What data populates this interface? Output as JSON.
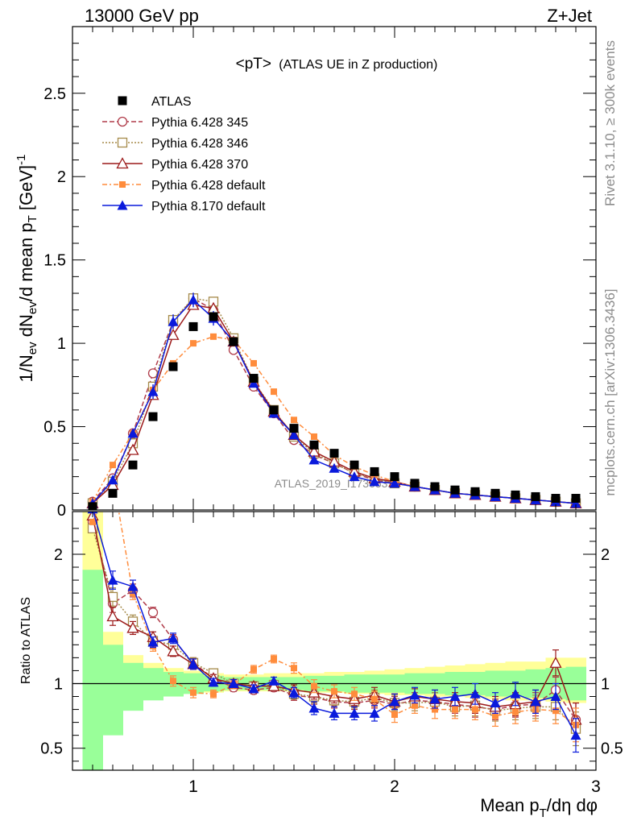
{
  "header": {
    "left": "13000 GeV pp",
    "right": "Z+Jet"
  },
  "side_labels": {
    "rivet": "Rivet 3.1.10, ≥ 300k events",
    "site": "mcplots.cern.ch [arXiv:1306.3436]"
  },
  "colors": {
    "ATLAS": "#000000",
    "p345": "#b03c4a",
    "p346": "#a58a4a",
    "p370": "#9c1a1a",
    "p6def": "#ff8c3c",
    "p8def": "#0a1adc",
    "band_inner": "#99ff99",
    "band_outer": "#ffff99"
  },
  "chart_data": [
    {
      "type": "line",
      "title_main": "<pT>",
      "title_sub": "(ATLAS UE in Z production)",
      "ylabel": "1/N_ev dN_ev/d mean p_T [GeV]^-1",
      "watermark": "ATLAS_2019_I1736531",
      "xlim": [
        0.4,
        3.0
      ],
      "ylim": [
        0,
        2.9
      ],
      "y_ticks": [
        "0",
        "0.5",
        "1",
        "1.5",
        "2",
        "2.5"
      ],
      "grid": false,
      "legend_position": "top-left",
      "x": [
        0.5,
        0.6,
        0.7,
        0.8,
        0.9,
        1.0,
        1.1,
        1.2,
        1.3,
        1.4,
        1.5,
        1.6,
        1.7,
        1.8,
        1.9,
        2.0,
        2.1,
        2.2,
        2.3,
        2.4,
        2.5,
        2.6,
        2.7,
        2.8,
        2.9
      ],
      "series": [
        {
          "name": "ATLAS",
          "key": "ATLAS",
          "marker": "square",
          "values": [
            0.02,
            0.1,
            0.27,
            0.56,
            0.86,
            1.1,
            1.16,
            1.01,
            0.79,
            0.6,
            0.49,
            0.39,
            0.34,
            0.27,
            0.23,
            0.2,
            0.16,
            0.14,
            0.12,
            0.11,
            0.1,
            0.09,
            0.08,
            0.07,
            0.07
          ]
        },
        {
          "name": "Pythia 6.428 345",
          "key": "p345",
          "marker": "circle-open",
          "dash": "6,3",
          "values": [
            0.05,
            0.19,
            0.46,
            0.82,
            1.13,
            1.27,
            1.2,
            0.96,
            0.74,
            0.58,
            0.42,
            0.33,
            0.28,
            0.22,
            0.18,
            0.16,
            0.14,
            0.12,
            0.1,
            0.09,
            0.08,
            0.07,
            0.06,
            0.05,
            0.04
          ]
        },
        {
          "name": "Pythia 6.428 346",
          "key": "p346",
          "marker": "square-open",
          "dash": "2,2",
          "values": [
            0.04,
            0.17,
            0.4,
            0.74,
            1.14,
            1.27,
            1.25,
            1.03,
            0.77,
            0.6,
            0.44,
            0.34,
            0.28,
            0.22,
            0.19,
            0.16,
            0.14,
            0.12,
            0.1,
            0.09,
            0.08,
            0.07,
            0.06,
            0.05,
            0.04
          ]
        },
        {
          "name": "Pythia 6.428 370",
          "key": "p370",
          "marker": "triangle-open",
          "dash": "",
          "values": [
            0.04,
            0.15,
            0.36,
            0.69,
            1.05,
            1.23,
            1.21,
            1.01,
            0.77,
            0.59,
            0.45,
            0.35,
            0.29,
            0.23,
            0.19,
            0.17,
            0.14,
            0.12,
            0.1,
            0.09,
            0.08,
            0.07,
            0.06,
            0.05,
            0.04
          ]
        },
        {
          "name": "Pythia 6.428 default",
          "key": "p6def",
          "marker": "square-small",
          "dash": "6,3,2,3",
          "values": [
            0.05,
            0.27,
            0.46,
            0.72,
            0.88,
            1.0,
            1.04,
            1.02,
            0.88,
            0.71,
            0.54,
            0.44,
            0.33,
            0.26,
            0.21,
            0.17,
            0.14,
            0.12,
            0.1,
            0.09,
            0.08,
            0.07,
            0.06,
            0.05,
            0.04
          ]
        },
        {
          "name": "Pythia 8.170 default",
          "key": "p8def",
          "marker": "triangle",
          "dash": "",
          "values": [
            0.04,
            0.18,
            0.46,
            0.71,
            1.13,
            1.26,
            1.15,
            1.01,
            0.76,
            0.58,
            0.45,
            0.3,
            0.25,
            0.2,
            0.17,
            0.16,
            0.14,
            0.12,
            0.1,
            0.09,
            0.08,
            0.07,
            0.06,
            0.05,
            0.04
          ]
        }
      ]
    },
    {
      "type": "line",
      "ylabel": "Ratio to ATLAS",
      "xlabel": "Mean p_T/dη dφ",
      "xlim": [
        0.4,
        3.0
      ],
      "ylim": [
        0.33,
        2.33
      ],
      "y_ticks": [
        "0.5",
        "1",
        "2"
      ],
      "x_ticks": [
        "1",
        "2",
        "3"
      ],
      "x_bin_edges": [
        0.45,
        0.55,
        0.65,
        0.75,
        0.85,
        0.95,
        1.05,
        1.15,
        1.25,
        1.35,
        1.45,
        1.55,
        1.65,
        1.75,
        1.85,
        1.95,
        2.05,
        2.15,
        2.25,
        2.35,
        2.45,
        2.55,
        2.65,
        2.75,
        2.85,
        2.95
      ],
      "band_inner": {
        "lo": [
          0.0,
          0.6,
          0.79,
          0.87,
          0.9,
          0.92,
          0.94,
          0.95,
          0.95,
          0.95,
          0.95,
          0.94,
          0.94,
          0.93,
          0.93,
          0.93,
          0.92,
          0.92,
          0.91,
          0.91,
          0.9,
          0.9,
          0.89,
          0.88,
          0.87
        ],
        "hi": [
          1.88,
          1.3,
          1.16,
          1.12,
          1.09,
          1.08,
          1.06,
          1.05,
          1.05,
          1.05,
          1.05,
          1.06,
          1.06,
          1.07,
          1.07,
          1.07,
          1.08,
          1.08,
          1.09,
          1.09,
          1.1,
          1.1,
          1.11,
          1.12,
          1.13
        ]
      },
      "band_outer": {
        "lo": [
          0.0,
          0.7,
          0.83,
          0.88,
          0.9,
          0.92,
          0.93,
          0.94,
          0.94,
          0.94,
          0.94,
          0.93,
          0.93,
          0.92,
          0.92,
          0.91,
          0.91,
          0.9,
          0.9,
          0.89,
          0.88,
          0.87,
          0.87,
          0.86,
          0.85
        ],
        "hi": [
          2.33,
          1.4,
          1.22,
          1.16,
          1.12,
          1.1,
          1.08,
          1.07,
          1.07,
          1.08,
          1.08,
          1.08,
          1.09,
          1.09,
          1.1,
          1.11,
          1.12,
          1.13,
          1.14,
          1.15,
          1.16,
          1.17,
          1.17,
          1.2,
          1.2
        ]
      },
      "series": [
        {
          "key": "p345",
          "values": [
            2.25,
            1.62,
            1.72,
            1.55,
            1.34,
            1.16,
            1.04,
            0.97,
            0.95,
            0.97,
            0.91,
            0.89,
            0.86,
            0.85,
            0.87,
            0.84,
            0.87,
            0.86,
            0.84,
            0.82,
            0.8,
            0.83,
            0.84,
            0.95,
            0.72
          ]
        },
        {
          "key": "p346",
          "values": [
            2.2,
            1.67,
            1.48,
            1.33,
            1.3,
            1.16,
            1.08,
            1.0,
            0.98,
            0.99,
            0.92,
            0.9,
            0.87,
            0.86,
            0.89,
            0.85,
            0.85,
            0.86,
            0.82,
            0.83,
            0.79,
            0.81,
            0.82,
            0.82,
            0.65
          ]
        },
        {
          "key": "p370",
          "values": [
            2.3,
            1.52,
            1.43,
            1.36,
            1.25,
            1.15,
            1.04,
            1.0,
            0.98,
            0.98,
            0.95,
            0.93,
            0.9,
            0.88,
            0.91,
            0.86,
            0.9,
            0.88,
            0.86,
            0.85,
            0.82,
            0.84,
            0.86,
            1.16,
            0.72
          ]
        },
        {
          "key": "p6def",
          "values": [
            2.25,
            2.6,
            1.7,
            1.29,
            1.02,
            0.93,
            0.92,
            0.99,
            1.11,
            1.19,
            1.12,
            0.98,
            0.94,
            0.92,
            0.88,
            0.76,
            0.83,
            0.8,
            0.8,
            0.8,
            0.75,
            0.78,
            0.8,
            0.79,
            0.68
          ]
        },
        {
          "key": "p8def",
          "values": [
            2.35,
            1.8,
            1.75,
            1.32,
            1.35,
            1.15,
            1.01,
            1.0,
            0.96,
            1.02,
            0.93,
            0.81,
            0.77,
            0.77,
            0.77,
            0.86,
            0.91,
            0.88,
            0.9,
            0.92,
            0.85,
            0.92,
            0.86,
            0.9,
            0.6
          ]
        }
      ],
      "errors": [
        0.0,
        0.07,
        0.05,
        0.04,
        0.04,
        0.04,
        0.03,
        0.03,
        0.03,
        0.03,
        0.04,
        0.05,
        0.05,
        0.05,
        0.06,
        0.06,
        0.06,
        0.07,
        0.07,
        0.08,
        0.08,
        0.09,
        0.09,
        0.1,
        0.13
      ]
    }
  ]
}
